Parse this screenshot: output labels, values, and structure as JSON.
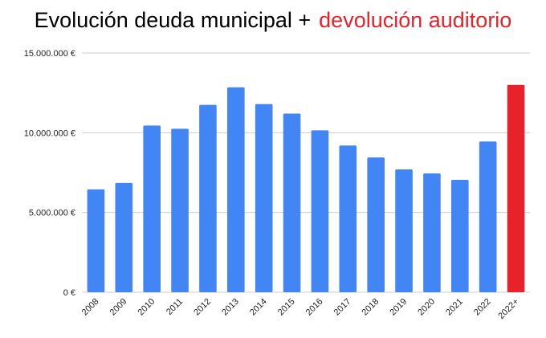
{
  "title": {
    "part1": "Evolución deuda municipal +",
    "part2": "devolución auditorio"
  },
  "colors": {
    "bar": "#4285f4",
    "highlight": "#e8222a",
    "grid": "#cccccc"
  },
  "chart_data": {
    "type": "bar",
    "title": "Evolución deuda municipal + devolución auditorio",
    "xlabel": "",
    "ylabel": "",
    "categories": [
      "2008",
      "2009",
      "2010",
      "2011",
      "2012",
      "2013",
      "2014",
      "2015",
      "2016",
      "2017",
      "2018",
      "2019",
      "2020",
      "2021",
      "2022",
      "2022+"
    ],
    "values": [
      6450000,
      6850000,
      10450000,
      10250000,
      11750000,
      12850000,
      11800000,
      11200000,
      10150000,
      9200000,
      8450000,
      7700000,
      7450000,
      7050000,
      9450000,
      13000000
    ],
    "highlight_index": 15,
    "ylim": [
      0,
      15000000
    ],
    "yticks": [
      0,
      5000000,
      10000000,
      15000000
    ],
    "ytick_labels": [
      "0 €",
      "5.000.000 €",
      "10.000.000 €",
      "15.000.000 €"
    ],
    "grid": true,
    "legend": "none"
  }
}
